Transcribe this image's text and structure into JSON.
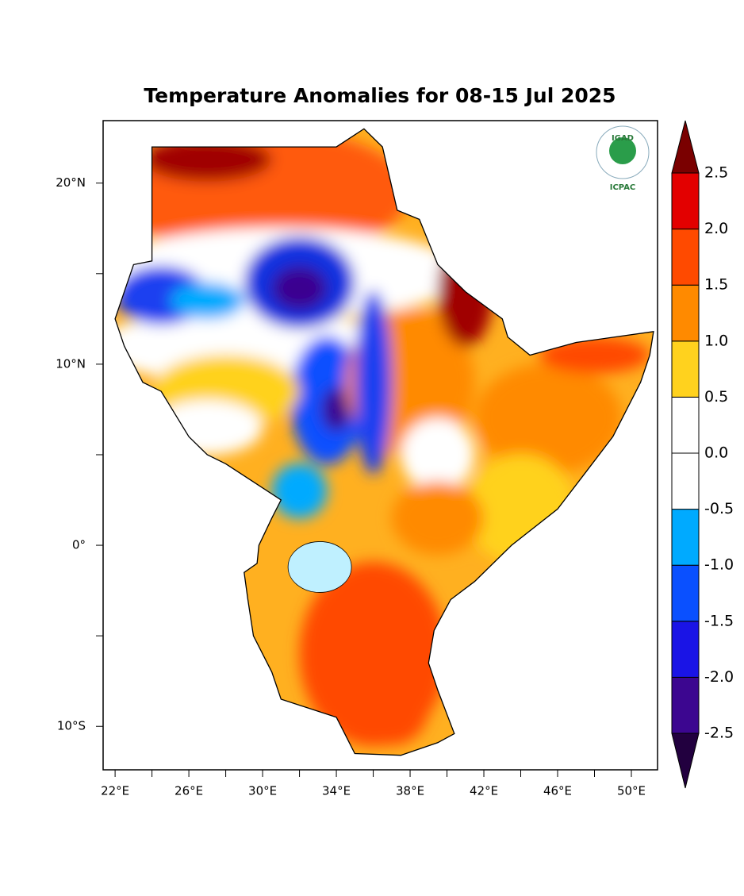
{
  "map": {
    "title": "Temperature Anomalies for 08-15 Jul 2025",
    "logo": {
      "top": "IGAD",
      "bottom": "ICPAC"
    },
    "lon_range": [
      21.35,
      51.42
    ],
    "lat_range": [
      -12.4,
      23.45
    ],
    "xticks": [
      {
        "value": 22,
        "label": "22°E"
      },
      {
        "value": 26,
        "label": "26°E"
      },
      {
        "value": 30,
        "label": "30°E"
      },
      {
        "value": 34,
        "label": "34°E"
      },
      {
        "value": 38,
        "label": "38°E"
      },
      {
        "value": 42,
        "label": "42°E"
      },
      {
        "value": 46,
        "label": "46°E"
      },
      {
        "value": 50,
        "label": "50°E"
      }
    ],
    "xminor": [
      24,
      28,
      32,
      36,
      40,
      44,
      48
    ],
    "yticks": [
      {
        "value": 20,
        "label": "20°N"
      },
      {
        "value": 10,
        "label": "10°N"
      },
      {
        "value": 0,
        "label": "0°"
      },
      {
        "value": -10,
        "label": "10°S"
      }
    ],
    "yminor": [
      15,
      5,
      -5
    ],
    "colorbar": {
      "levels": [
        -2.5,
        {
          "value": -2,
          "label": "-2.0"
        },
        -1.5,
        {
          "value": -1,
          "label": "-1.0"
        },
        -0.5,
        {
          "value": 0,
          "label": "0.0"
        },
        0.5,
        {
          "value": 1,
          "label": "1.0"
        },
        1.5,
        {
          "value": 2,
          "label": "2.0"
        },
        2.5
      ],
      "colors": [
        "#22003f",
        "#3c0690",
        "#1a14e6",
        "#0a50ff",
        "#00aaff",
        "#ffffff",
        "#ffffff",
        "#ffd21e",
        "#ff8a00",
        "#ff4a00",
        "#e30000",
        "#7a0000"
      ]
    }
  }
}
